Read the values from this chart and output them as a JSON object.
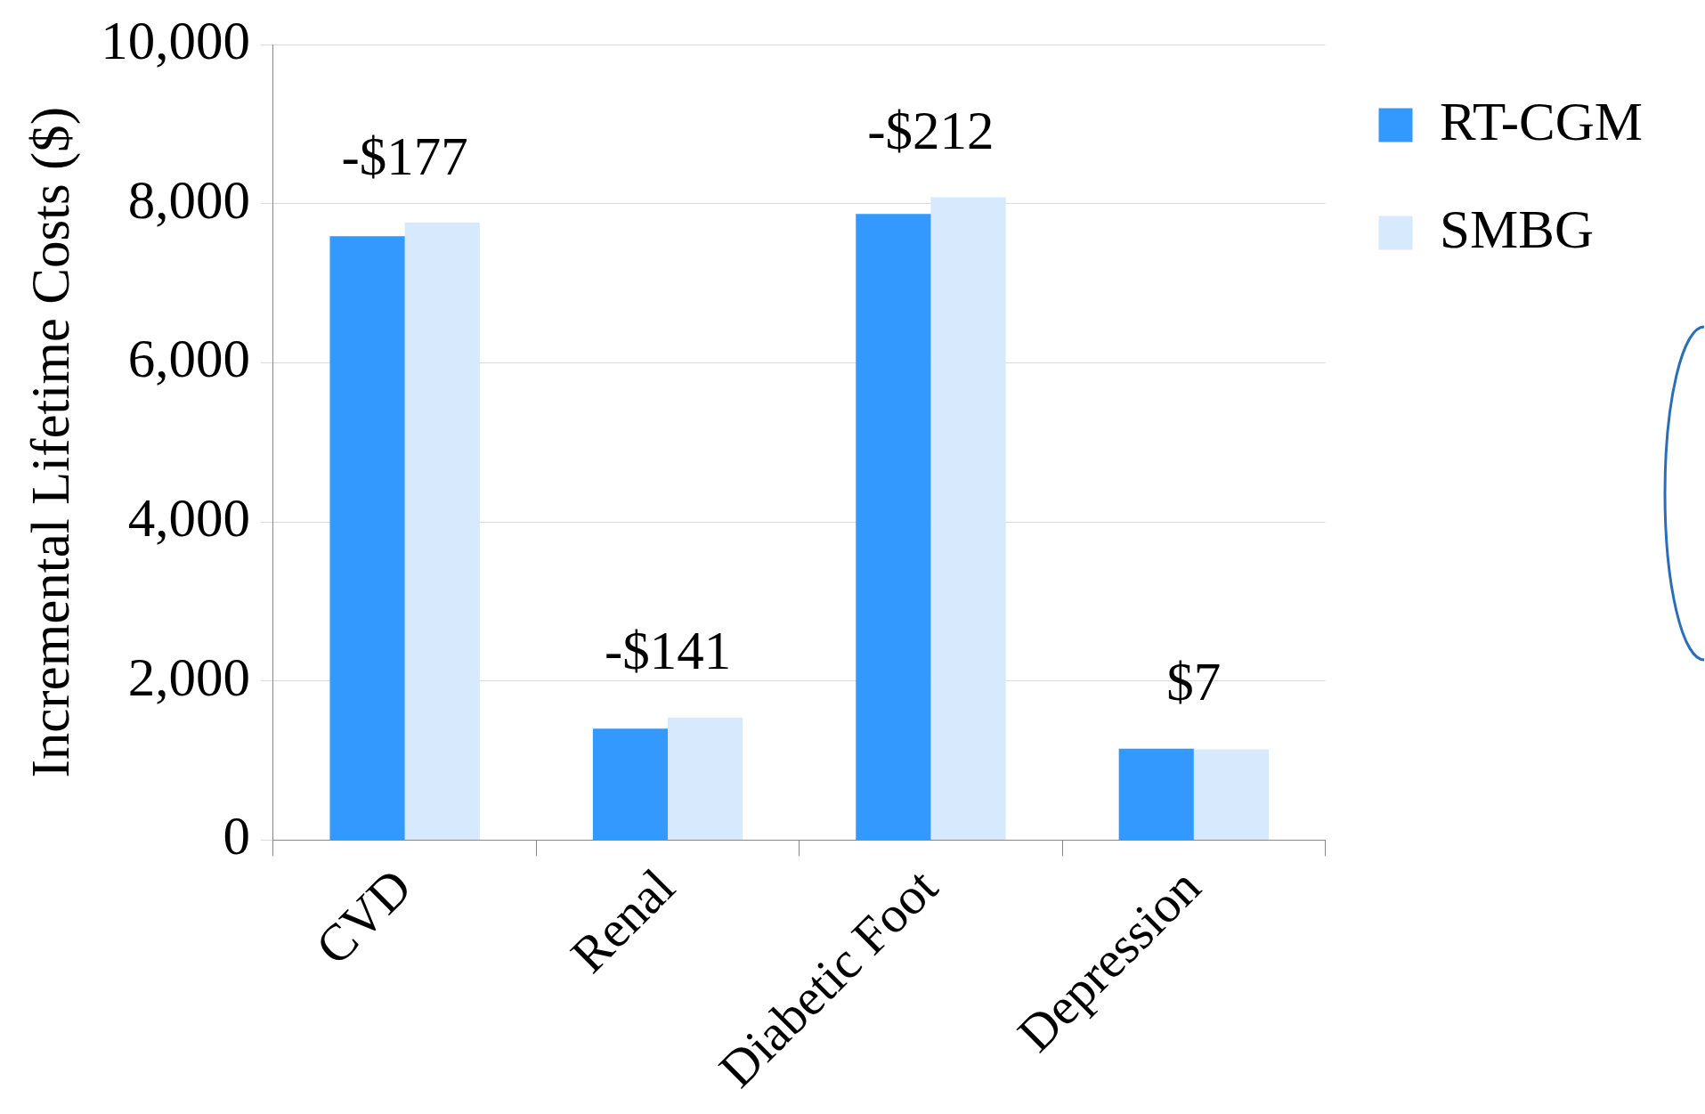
{
  "chart_data": {
    "type": "bar",
    "ylabel": "Incremental Lifetime Costs ($)",
    "categories": [
      "CVD",
      "Renal",
      "Diabetic Foot",
      "Depression"
    ],
    "series": [
      {
        "name": "RT-CGM",
        "color": "#3399ff",
        "values": [
          7590,
          1400,
          7870,
          1150
        ]
      },
      {
        "name": "SMBG",
        "color": "#d6e9fd",
        "values": [
          7760,
          1540,
          8080,
          1140
        ]
      }
    ],
    "ylim": [
      0,
      10000
    ],
    "yticks": [
      0,
      {
        "value": 2000,
        "label": "2,000"
      },
      {
        "value": 4000,
        "label": "4,000"
      },
      {
        "value": 6000,
        "label": "6,000"
      },
      {
        "value": 8000,
        "label": "8,000"
      },
      {
        "value": 10000,
        "label": "10,000"
      }
    ],
    "grid": "y",
    "legend": "top right",
    "annotations": [
      {
        "text": "-$177",
        "x": "CVD",
        "y": 7760
      },
      {
        "text": "-$141",
        "x": "Renal",
        "y": 1540
      },
      {
        "text": "-$212",
        "x": "Diabetic Foot",
        "y": 8080
      },
      {
        "text": "$7",
        "x": "Depression",
        "y": 1150
      }
    ]
  }
}
